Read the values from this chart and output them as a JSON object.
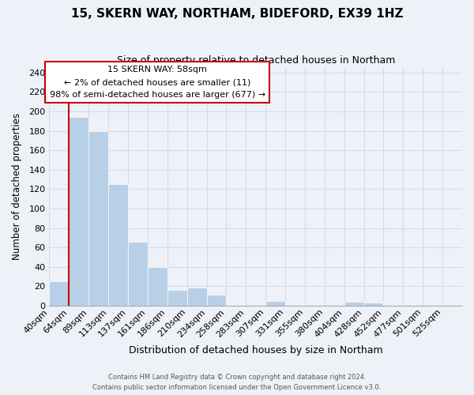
{
  "title": "15, SKERN WAY, NORTHAM, BIDEFORD, EX39 1HZ",
  "subtitle": "Size of property relative to detached houses in Northam",
  "xlabel": "Distribution of detached houses by size in Northam",
  "ylabel": "Number of detached properties",
  "bar_color": "#b8cfe8",
  "grid_color": "#d0dce8",
  "background_color": "#eef2f8",
  "bins": [
    "40sqm",
    "64sqm",
    "89sqm",
    "113sqm",
    "137sqm",
    "161sqm",
    "186sqm",
    "210sqm",
    "234sqm",
    "258sqm",
    "283sqm",
    "307sqm",
    "331sqm",
    "355sqm",
    "380sqm",
    "404sqm",
    "428sqm",
    "452sqm",
    "477sqm",
    "501sqm",
    "525sqm"
  ],
  "values": [
    25,
    194,
    180,
    125,
    66,
    40,
    16,
    19,
    11,
    0,
    0,
    5,
    0,
    0,
    0,
    4,
    3,
    0,
    0,
    0,
    0
  ],
  "annotation_box_color": "#ffffff",
  "annotation_border_color": "#cc0000",
  "annotation_line1": "15 SKERN WAY: 58sqm",
  "annotation_line2": "← 2% of detached houses are smaller (11)",
  "annotation_line3": "98% of semi-detached houses are larger (677) →",
  "marker_line_color": "#cc0000",
  "ylim": [
    0,
    245
  ],
  "yticks": [
    0,
    20,
    40,
    60,
    80,
    100,
    120,
    140,
    160,
    180,
    200,
    220,
    240
  ],
  "footer1": "Contains HM Land Registry data © Crown copyright and database right 2024.",
  "footer2": "Contains public sector information licensed under the Open Government Licence v3.0."
}
